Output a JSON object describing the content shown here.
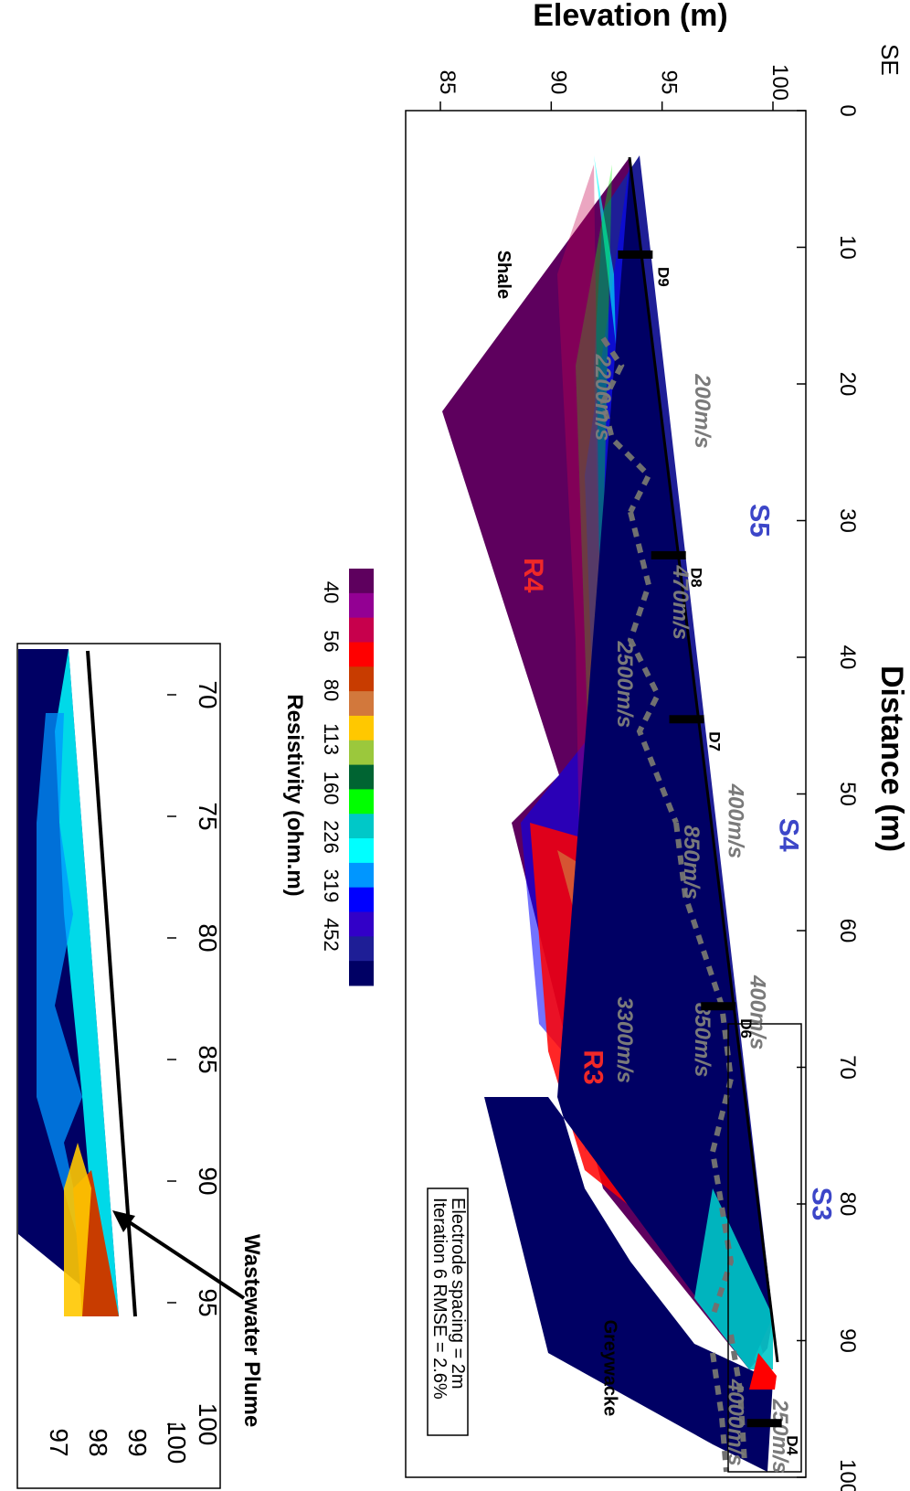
{
  "header": {
    "orientation_label": "SE"
  },
  "chart_data": {
    "type": "heatmap",
    "title": "",
    "xlabel": "Distance (m)",
    "ylabel": "Elevation (m)",
    "xlim": [
      0,
      100
    ],
    "ylim": [
      85,
      100
    ],
    "x_ticks": [
      "0",
      "10",
      "20",
      "30",
      "40",
      "50",
      "60",
      "70",
      "80",
      "90",
      "100"
    ],
    "y_ticks": [
      "100",
      "95",
      "90",
      "85"
    ],
    "info_box": [
      "Electrode spacing = 2m",
      "Iteration 6 RMSE = 2.6%"
    ],
    "colorbar": {
      "label": "Resistivity (ohm.m)",
      "ticks": [
        "40",
        "56",
        "80",
        "113",
        "160",
        "226",
        "319",
        "452"
      ],
      "colors": [
        "#5e005e",
        "#930093",
        "#c7004c",
        "#ff0000",
        "#c83c00",
        "#d2783c",
        "#ffc800",
        "#9bc83c",
        "#006432",
        "#00ff00",
        "#00c8c8",
        "#00ffff",
        "#0096ff",
        "#0000ff",
        "#3200c8",
        "#1e1e96",
        "#000064"
      ]
    },
    "velocity_labels": [
      {
        "text": "200m/s",
        "x": 22,
        "y": 96.5
      },
      {
        "text": "2200m/s",
        "x": 21,
        "y": 92
      },
      {
        "text": "470m/s",
        "x": 36,
        "y": 95.5
      },
      {
        "text": "2500m/s",
        "x": 42,
        "y": 93
      },
      {
        "text": "400m/s",
        "x": 52,
        "y": 98
      },
      {
        "text": "850m/s",
        "x": 55,
        "y": 96
      },
      {
        "text": "400m/s",
        "x": 66,
        "y": 99
      },
      {
        "text": "850m/s",
        "x": 68,
        "y": 96.5
      },
      {
        "text": "3300m/s",
        "x": 68,
        "y": 93
      },
      {
        "text": "250m/s",
        "x": 97,
        "y": 100
      },
      {
        "text": "4000m/s",
        "x": 96,
        "y": 98
      }
    ],
    "section_labels": [
      {
        "text": "S5",
        "x": 30,
        "y": 99,
        "color": "#3c46c8"
      },
      {
        "text": "S4",
        "x": 53,
        "y": 100.3,
        "color": "#3c46c8"
      },
      {
        "text": "S3",
        "x": 80,
        "y": 101.8,
        "color": "#3c46c8"
      },
      {
        "text": "R4",
        "x": 34,
        "y": 88.8,
        "color": "#f02828"
      },
      {
        "text": "R3",
        "x": 70,
        "y": 91.5,
        "color": "#f02828"
      }
    ],
    "rock_labels": [
      {
        "text": "Shale",
        "x": 12,
        "y": 87.6
      },
      {
        "text": "Greywacke",
        "x": 92,
        "y": 92.4
      }
    ],
    "markers": [
      {
        "text": "D9",
        "x": 10.5
      },
      {
        "text": "D8",
        "x": 32.5
      },
      {
        "text": "D7",
        "x": 44.5
      },
      {
        "text": "D6",
        "x": 65.5
      },
      {
        "text": "D4",
        "x": 96
      }
    ]
  },
  "inset": {
    "x_ticks": [
      "70",
      "75",
      "80",
      "85",
      "90",
      "95",
      "100"
    ],
    "y_ticks": [
      "100",
      "99",
      "98",
      "97"
    ],
    "annotation": "Wastewater Plume"
  }
}
